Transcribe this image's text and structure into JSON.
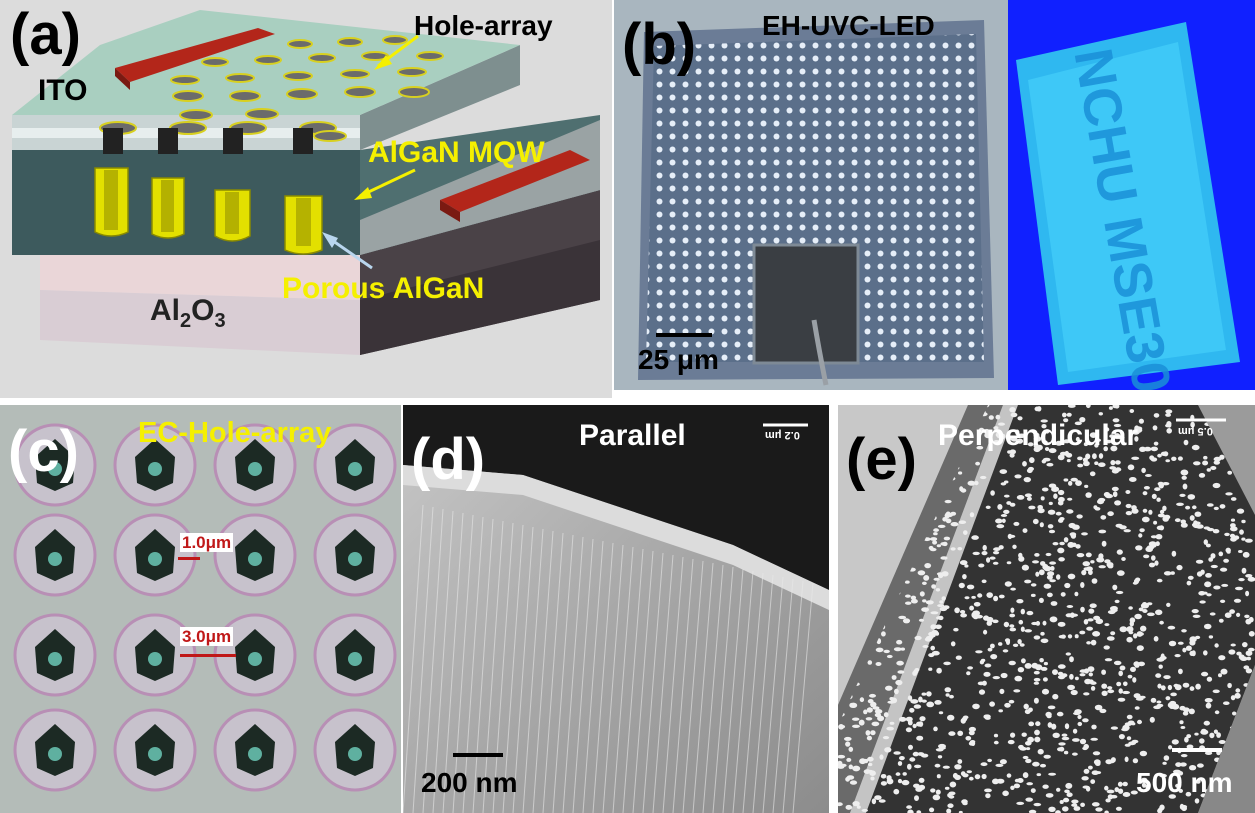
{
  "panel_a": {
    "label": "(a)",
    "ito": "ITO",
    "hole_array": "Hole-array",
    "mqw": "AlGaN MQW",
    "porous": "Porous AlGaN",
    "sapphire_main": "Al",
    "sapphire_sub1": "2",
    "sapphire_mid": "O",
    "sapphire_sub2": "3"
  },
  "panel_b": {
    "label": "(b)",
    "title": "EH-UVC-LED",
    "scale": "25 μm",
    "emission_text": "NCHU MSE30"
  },
  "panel_c": {
    "label": "(c)",
    "title": "EC-Hole-array",
    "measure1": "1.0μm",
    "measure2": "3.0μm"
  },
  "panel_d": {
    "label": "(d)",
    "title": "Parallel",
    "scale": "200 nm",
    "micro_scale": "0.2 μm"
  },
  "panel_e": {
    "label": "(e)",
    "title": "Perpendicular",
    "scale": "500 nm",
    "micro_scale": "0.5 μm"
  },
  "colors": {
    "label_yellow": "#f5f000",
    "electrode_red": "#b3261a",
    "uv_blue": "#1020ff",
    "uv_cyan": "#38d6ff"
  }
}
